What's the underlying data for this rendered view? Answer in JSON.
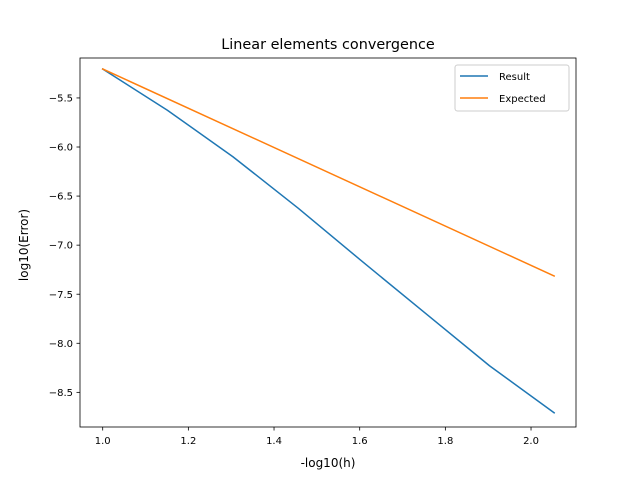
{
  "chart_data": {
    "type": "line",
    "title": "Linear elements convergence",
    "xlabel": "-log10(h)",
    "ylabel": "log10(Error)",
    "xlim": [
      0.947,
      2.105
    ],
    "ylim": [
      -8.853,
      -5.093
    ],
    "xticks": [
      1.0,
      1.2,
      1.4,
      1.6,
      1.8,
      2.0
    ],
    "xtick_labels": [
      "1.0",
      "1.2",
      "1.4",
      "1.6",
      "1.8",
      "2.0"
    ],
    "yticks": [
      -5.5,
      -6.0,
      -6.5,
      -7.0,
      -7.5,
      -8.0,
      -8.5
    ],
    "ytick_labels": [
      "−5.5",
      "−6.0",
      "−6.5",
      "−7.0",
      "−7.5",
      "−8.0",
      "−8.5"
    ],
    "grid": false,
    "legend_position": "top-right",
    "series": [
      {
        "name": "Result",
        "color": "#1f77b4",
        "x": [
          1.0,
          1.151,
          1.304,
          1.456,
          1.602,
          1.755,
          1.903,
          2.054
        ],
        "y": [
          -5.205,
          -5.625,
          -6.099,
          -6.622,
          -7.152,
          -7.7,
          -8.229,
          -8.708
        ]
      },
      {
        "name": "Expected",
        "color": "#ff7f0e",
        "x": [
          1.0,
          2.054
        ],
        "y": [
          -5.205,
          -7.314
        ]
      }
    ]
  }
}
